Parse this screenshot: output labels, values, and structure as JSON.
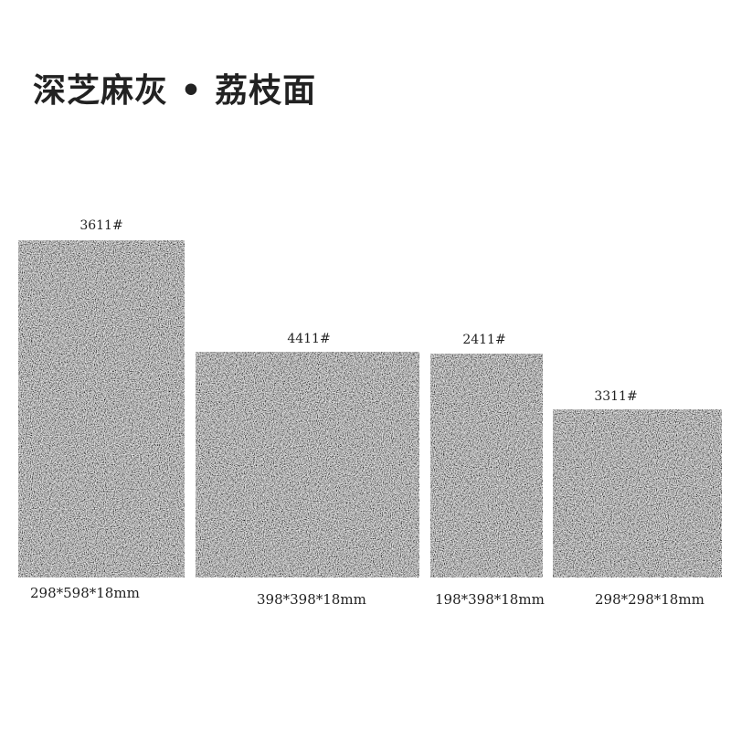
{
  "title": "深芝麻灰 • 荔枝面",
  "tiles": [
    {
      "code": "3611#",
      "size": "298*598*18mm",
      "color": "#7b7b7b"
    },
    {
      "code": "4411#",
      "size": "398*398*18mm",
      "color": "#7e7e7e"
    },
    {
      "code": "2411#",
      "size": "198*398*18mm",
      "color": "#808080"
    },
    {
      "code": "3311#",
      "size": "298*298*18mm",
      "color": "#858585"
    }
  ]
}
